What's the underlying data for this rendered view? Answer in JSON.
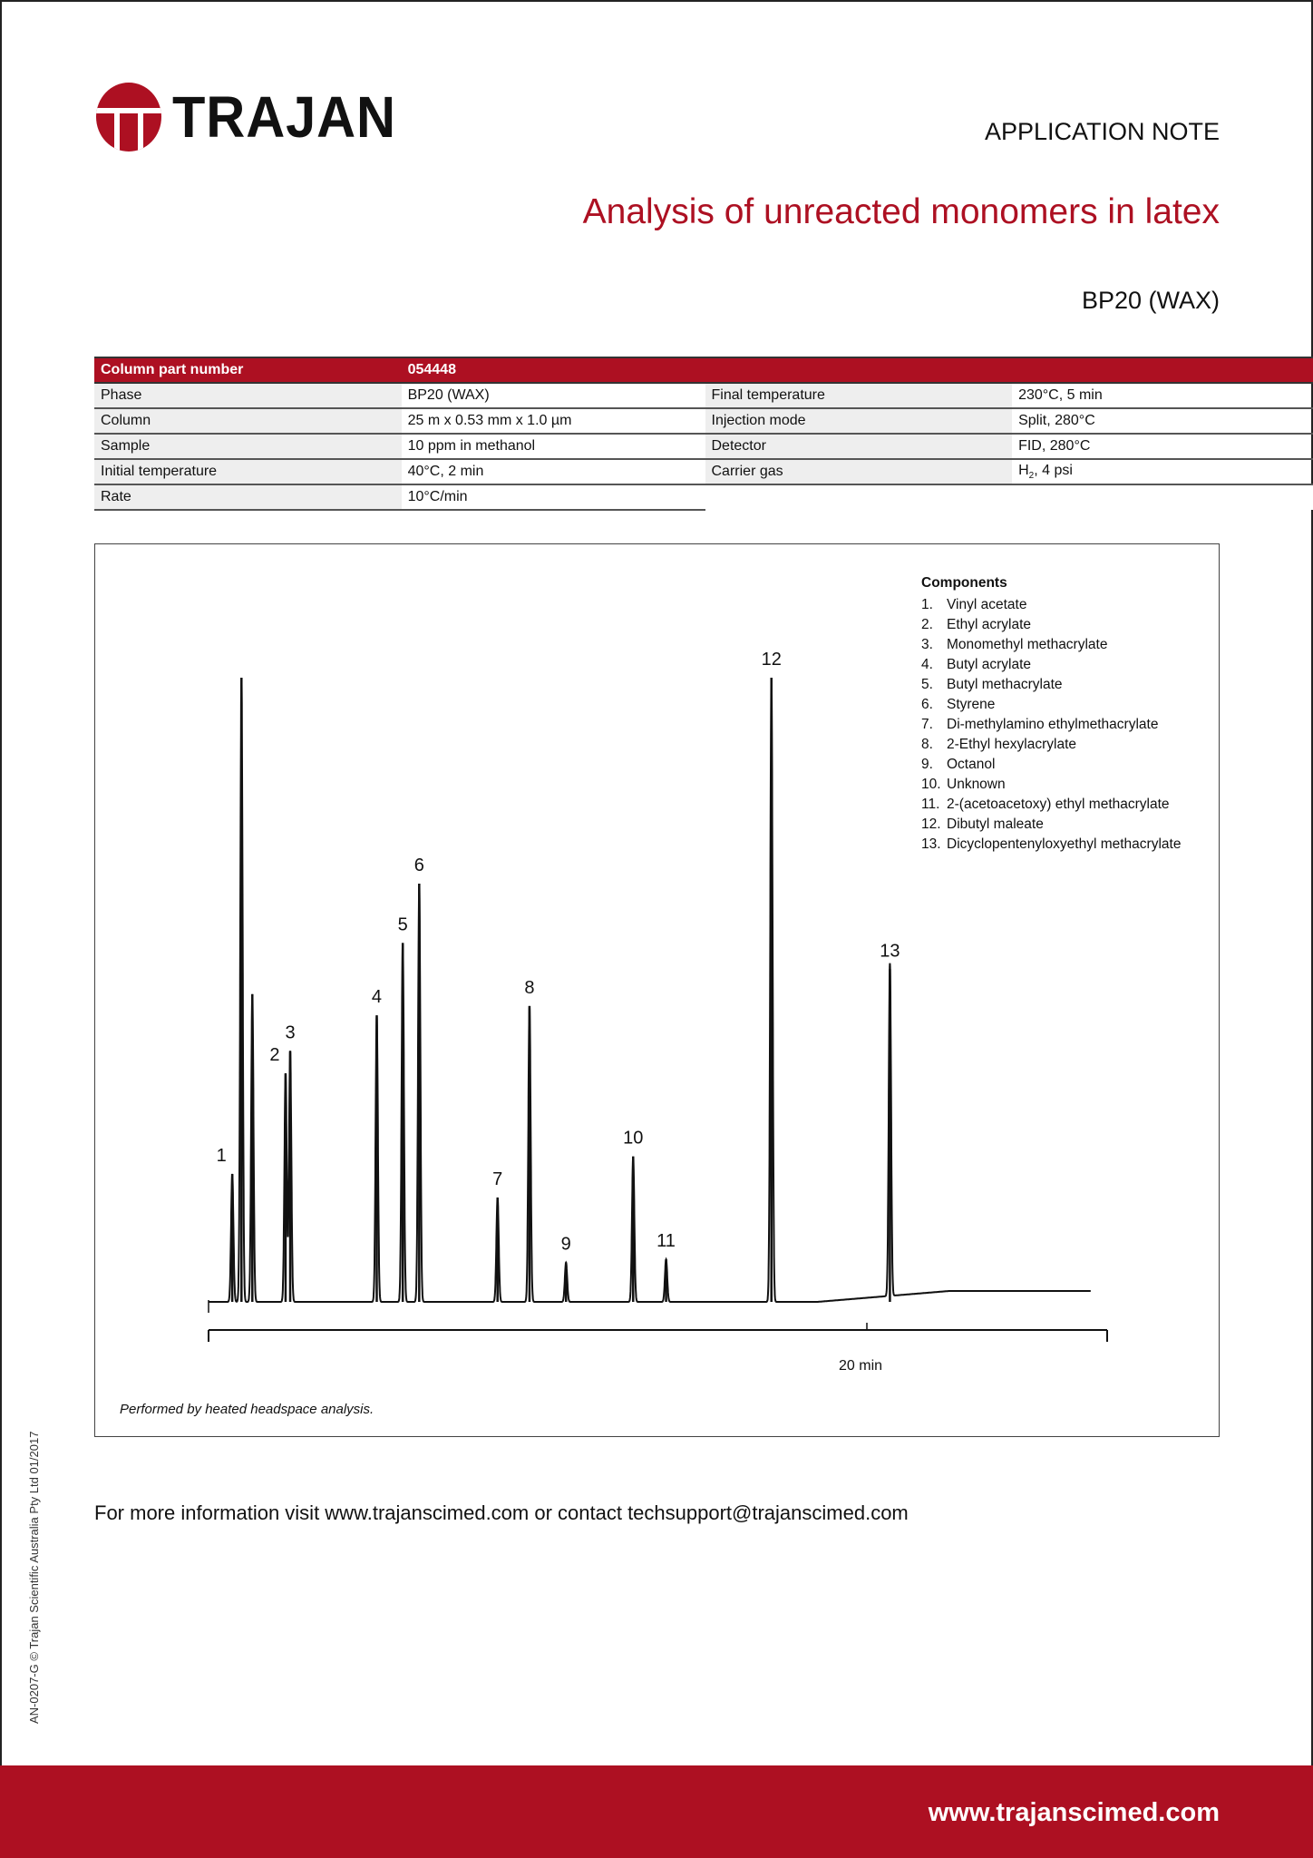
{
  "brand": {
    "name": "TRAJAN",
    "color": "#ad1022"
  },
  "header": {
    "doc_type": "APPLICATION NOTE",
    "title": "Analysis of unreacted monomers in latex",
    "subtitle": "BP20 (WAX)"
  },
  "specs": {
    "header": {
      "label": "Column part number",
      "value": "054448"
    },
    "rows": [
      {
        "l1": "Phase",
        "v1": "BP20 (WAX)",
        "l2": "Final temperature",
        "v2": "230°C, 5 min"
      },
      {
        "l1": "Column",
        "v1": "25 m x 0.53 mm x 1.0 µm",
        "l2": "Injection mode",
        "v2": "Split, 280°C"
      },
      {
        "l1": "Sample",
        "v1": "10 ppm in methanol",
        "l2": "Detector",
        "v2": "FID, 280°C"
      },
      {
        "l1": "Initial temperature",
        "v1": "40°C, 2 min",
        "l2": "Carrier gas",
        "v2_main": "H",
        "v2_sub": "2",
        "v2_rest": ", 4 psi"
      },
      {
        "l1": "Rate",
        "v1": "10°C/min"
      }
    ]
  },
  "chart_data": {
    "type": "line",
    "xlabel": "",
    "x_tick_labels": [
      "20 min"
    ],
    "x_ticks": [
      20
    ],
    "xlim": [
      0,
      27.3
    ],
    "ylabel": "",
    "grid": false,
    "legend_title": "Components",
    "legend_placement": "top-right",
    "components": [
      "Vinyl acetate",
      "Ethyl acrylate",
      "Monomethyl methacrylate",
      "Butyl acrylate",
      "Butyl methacrylate",
      "Styrene",
      "Di-methylamino ethylmethacrylate",
      "2-Ethyl hexylacrylate",
      "Octanol",
      "Unknown",
      "2-(acetoacetoxy) ethyl methacrylate",
      "Dibutyl maleate",
      "Dicyclopentenyloxyethyl methacrylate"
    ],
    "peaks": [
      {
        "label": "1",
        "t": 0.72,
        "height": 20.5
      },
      {
        "label": "",
        "t": 1.0,
        "height": 100
      },
      {
        "label": "",
        "t": 1.33,
        "height": 49.3
      },
      {
        "label": "2",
        "t": 2.34,
        "height": 36.6
      },
      {
        "label": "3",
        "t": 2.48,
        "height": 40.2
      },
      {
        "label": "4",
        "t": 5.11,
        "height": 45.9
      },
      {
        "label": "5",
        "t": 5.9,
        "height": 57.5
      },
      {
        "label": "6",
        "t": 6.4,
        "height": 67.0
      },
      {
        "label": "7",
        "t": 8.78,
        "height": 16.7
      },
      {
        "label": "8",
        "t": 9.75,
        "height": 47.4
      },
      {
        "label": "9",
        "t": 10.86,
        "height": 6.3
      },
      {
        "label": "10",
        "t": 12.9,
        "height": 23.3
      },
      {
        "label": "11",
        "t": 13.9,
        "height": 6.8
      },
      {
        "label": "12",
        "t": 17.1,
        "height": 100
      },
      {
        "label": "13",
        "t": 20.7,
        "height": 53.3
      }
    ],
    "footnote": "Performed by heated headspace analysis."
  },
  "contact": "For more information visit www.trajanscimed.com or contact techsupport@trajanscimed.com",
  "side_text": "AN-0207-G © Trajan Scientific Australia Pty Ltd 01/2017",
  "footer": {
    "url": "www.trajanscimed.com"
  }
}
